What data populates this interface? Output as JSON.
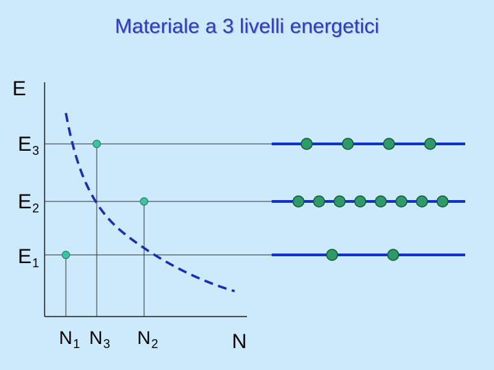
{
  "title": "Materiale a 3 livelli energetici",
  "axes": {
    "y_label": "E",
    "x_label": "N"
  },
  "levels": [
    {
      "base": "E",
      "sub": "3"
    },
    {
      "base": "E",
      "sub": "2"
    },
    {
      "base": "E",
      "sub": "1"
    }
  ],
  "populations": [
    {
      "base": "N",
      "sub": "1"
    },
    {
      "base": "N",
      "sub": "3"
    },
    {
      "base": "N",
      "sub": "2"
    }
  ],
  "particle_counts": {
    "E3": 4,
    "E2": 8,
    "E1": 2
  },
  "colors": {
    "background": "#cdeafc",
    "title": "#2f3fb8",
    "level_bar": "#1133cc",
    "dashed_curve": "#1a2fb0",
    "particle": "#2e9a6a",
    "axis": "#222222"
  }
}
